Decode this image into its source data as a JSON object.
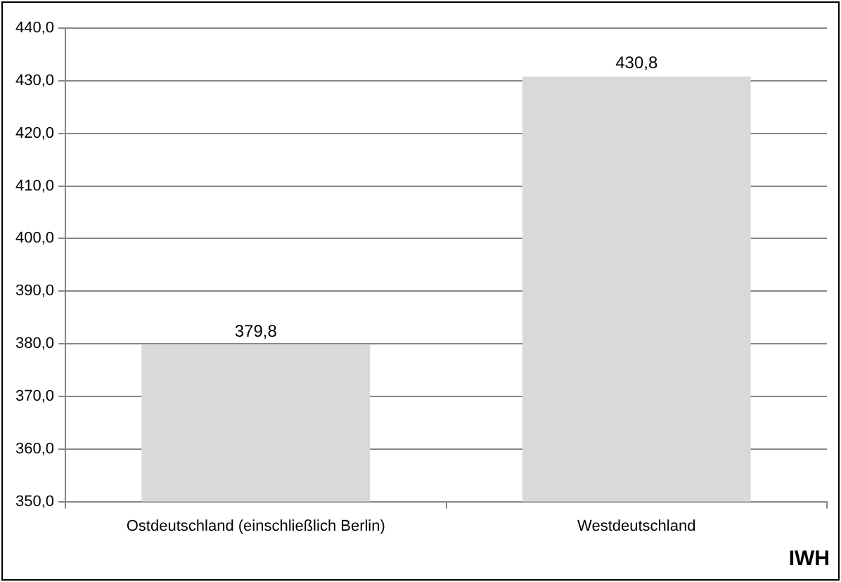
{
  "chart_data": {
    "type": "bar",
    "categories": [
      "Ostdeutschland (einschließlich Berlin)",
      "Westdeutschland"
    ],
    "values": [
      379.8,
      430.8
    ],
    "color": "#d9d9d9",
    "value_labels": [
      "379,8",
      "430,8"
    ],
    "ylim": [
      350,
      440
    ],
    "yticks": [
      {
        "value": 350,
        "label": "350,0"
      },
      {
        "value": 360,
        "label": "360,0"
      },
      {
        "value": 370,
        "label": "370,0"
      },
      {
        "value": 380,
        "label": "380,0"
      },
      {
        "value": 390,
        "label": "390,0"
      },
      {
        "value": 400,
        "label": "400,0"
      },
      {
        "value": 410,
        "label": "410,0"
      },
      {
        "value": 420,
        "label": "420,0"
      },
      {
        "value": 430,
        "label": "430,0"
      },
      {
        "value": 440,
        "label": "440,0"
      }
    ],
    "grid": "y",
    "legend": false,
    "annotations": [
      "IWH"
    ]
  }
}
